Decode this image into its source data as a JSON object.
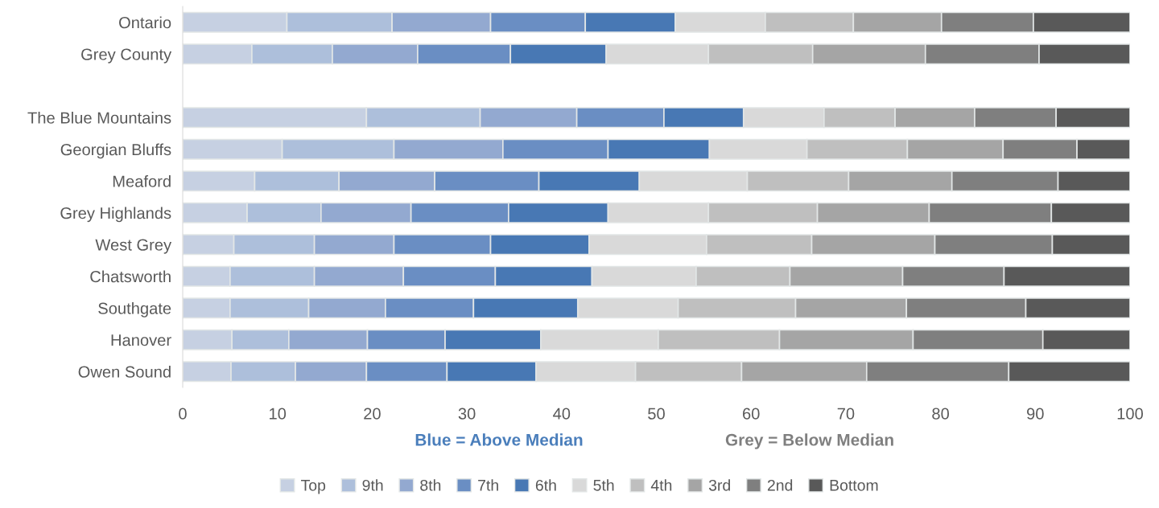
{
  "chart_data": {
    "type": "bar",
    "orientation": "horizontal",
    "stacked": true,
    "categories": [
      "Ontario",
      "Grey County",
      null,
      "The Blue Mountains",
      "Georgian Bluffs",
      "Meaford",
      "Grey Highlands",
      "West Grey",
      "Chatsworth",
      "Southgate",
      "Hanover",
      "Owen Sound"
    ],
    "series": [
      {
        "name": "Top",
        "color": "#c6d0e2",
        "values": [
          11.0,
          7.3,
          null,
          19.4,
          10.5,
          7.6,
          6.8,
          5.4,
          5.0,
          5.0,
          5.2,
          5.1
        ]
      },
      {
        "name": "9th",
        "color": "#adbfdb",
        "values": [
          11.1,
          8.5,
          null,
          12.0,
          11.8,
          8.9,
          7.8,
          8.5,
          8.9,
          8.3,
          6.0,
          6.8
        ]
      },
      {
        "name": "8th",
        "color": "#93a9d0",
        "values": [
          10.4,
          9.0,
          null,
          10.2,
          11.5,
          10.1,
          9.5,
          8.4,
          9.4,
          8.1,
          8.3,
          7.5
        ]
      },
      {
        "name": "7th",
        "color": "#6a8ec3",
        "values": [
          10.0,
          9.8,
          null,
          9.2,
          11.1,
          11.0,
          10.3,
          10.2,
          9.7,
          9.3,
          8.2,
          8.5
        ]
      },
      {
        "name": "6th",
        "color": "#4878b4",
        "values": [
          9.5,
          10.1,
          null,
          8.4,
          10.7,
          10.6,
          10.5,
          10.4,
          10.2,
          11.0,
          10.1,
          9.4
        ]
      },
      {
        "name": "5th",
        "color": "#d9d9d9",
        "values": [
          9.5,
          10.8,
          null,
          8.5,
          10.3,
          11.4,
          10.6,
          12.4,
          11.0,
          10.6,
          12.4,
          10.5
        ]
      },
      {
        "name": "4th",
        "color": "#bfbfbf",
        "values": [
          9.3,
          11.0,
          null,
          7.5,
          10.6,
          10.7,
          11.5,
          11.1,
          9.9,
          12.4,
          12.8,
          11.2
        ]
      },
      {
        "name": "3rd",
        "color": "#a5a5a5",
        "values": [
          9.3,
          11.9,
          null,
          8.4,
          10.1,
          10.9,
          11.8,
          13.0,
          11.9,
          11.7,
          14.1,
          13.2
        ]
      },
      {
        "name": "2nd",
        "color": "#7f7f7f",
        "values": [
          9.7,
          12.0,
          null,
          8.6,
          7.8,
          11.2,
          12.9,
          12.4,
          10.7,
          12.6,
          13.7,
          15.0
        ]
      },
      {
        "name": "Bottom",
        "color": "#595959",
        "values": [
          10.2,
          9.6,
          null,
          7.8,
          5.6,
          7.6,
          8.3,
          8.2,
          13.3,
          11.0,
          9.2,
          12.8
        ]
      }
    ],
    "xlim": [
      0,
      100
    ],
    "xticks": [
      0,
      10,
      20,
      30,
      40,
      50,
      60,
      70,
      80,
      90,
      100
    ],
    "annotations": [
      "Blue = Above Median",
      "Grey = Below Median"
    ],
    "legend": "bottom",
    "grid": false
  }
}
